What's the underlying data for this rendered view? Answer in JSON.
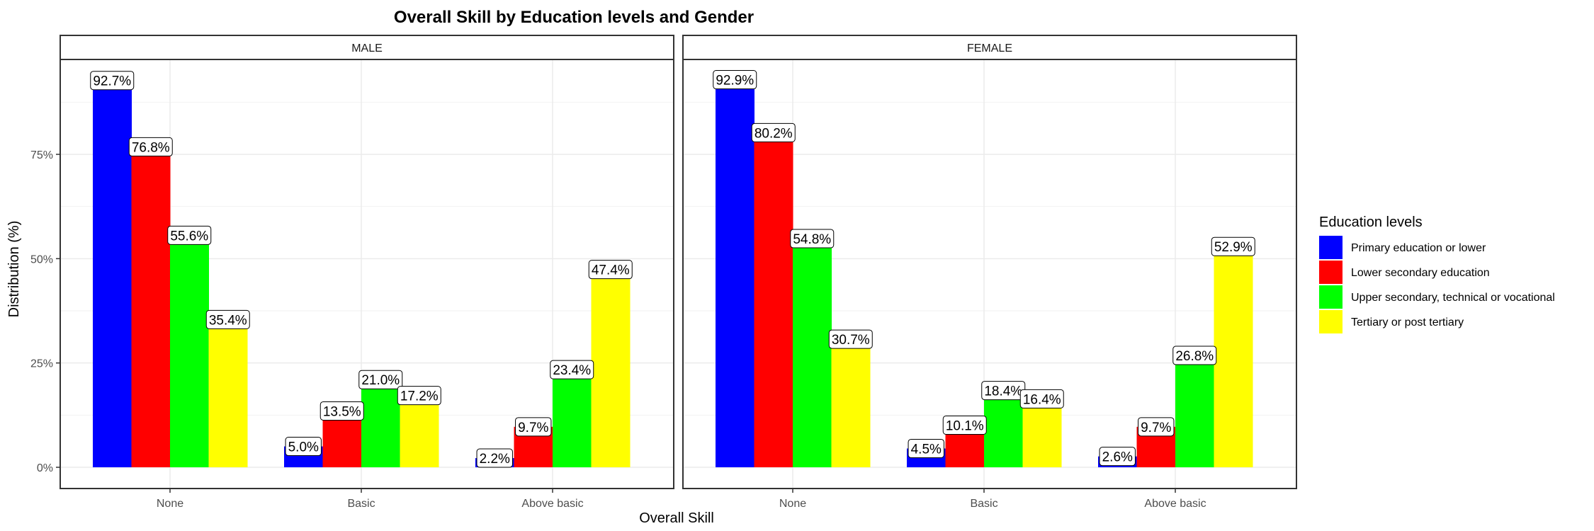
{
  "chart_data": {
    "type": "bar",
    "title": "Overall Skill by Education levels and Gender",
    "xlabel": "Overall Skill",
    "ylabel": "Distribution (%)",
    "categories": [
      "None",
      "Basic",
      "Above basic"
    ],
    "ylim": [
      0,
      100
    ],
    "y_ticks": [
      0,
      25,
      50,
      75
    ],
    "y_tick_labels": [
      "0%",
      "25%",
      "50%",
      "75%"
    ],
    "grid": true,
    "legend": {
      "title": "Education levels",
      "placement": "right",
      "items": [
        {
          "label": "Primary education or lower",
          "color": "#0000ff"
        },
        {
          "label": "Lower secondary education",
          "color": "#ff0000"
        },
        {
          "label": "Upper secondary, technical or vocational",
          "color": "#00ff00"
        },
        {
          "label": "Tertiary or post tertiary",
          "color": "#ffff00"
        }
      ]
    },
    "panels": [
      {
        "strip": "MALE",
        "series": [
          {
            "name": "Primary education or lower",
            "values": [
              92.7,
              5.0,
              2.2
            ],
            "labels": [
              "92.7%",
              "5.0%",
              "2.2%"
            ]
          },
          {
            "name": "Lower secondary education",
            "values": [
              76.8,
              13.5,
              9.7
            ],
            "labels": [
              "76.8%",
              "13.5%",
              "9.7%"
            ]
          },
          {
            "name": "Upper secondary, technical or vocational",
            "values": [
              55.6,
              21.0,
              23.4
            ],
            "labels": [
              "55.6%",
              "21.0%",
              "23.4%"
            ]
          },
          {
            "name": "Tertiary or post tertiary",
            "values": [
              35.4,
              17.2,
              47.4
            ],
            "labels": [
              "35.4%",
              "17.2%",
              "47.4%"
            ]
          }
        ]
      },
      {
        "strip": "FEMALE",
        "series": [
          {
            "name": "Primary education or lower",
            "values": [
              92.9,
              4.5,
              2.6
            ],
            "labels": [
              "92.9%",
              "4.5%",
              "2.6%"
            ]
          },
          {
            "name": "Lower secondary education",
            "values": [
              80.2,
              10.1,
              9.7
            ],
            "labels": [
              "80.2%",
              "10.1%",
              "9.7%"
            ]
          },
          {
            "name": "Upper secondary, technical or vocational",
            "values": [
              54.8,
              18.4,
              26.8
            ],
            "labels": [
              "54.8%",
              "18.4%",
              "26.8%"
            ]
          },
          {
            "name": "Tertiary or post tertiary",
            "values": [
              30.7,
              16.4,
              52.9
            ],
            "labels": [
              "30.7%",
              "16.4%",
              "52.9%"
            ]
          }
        ]
      }
    ]
  }
}
